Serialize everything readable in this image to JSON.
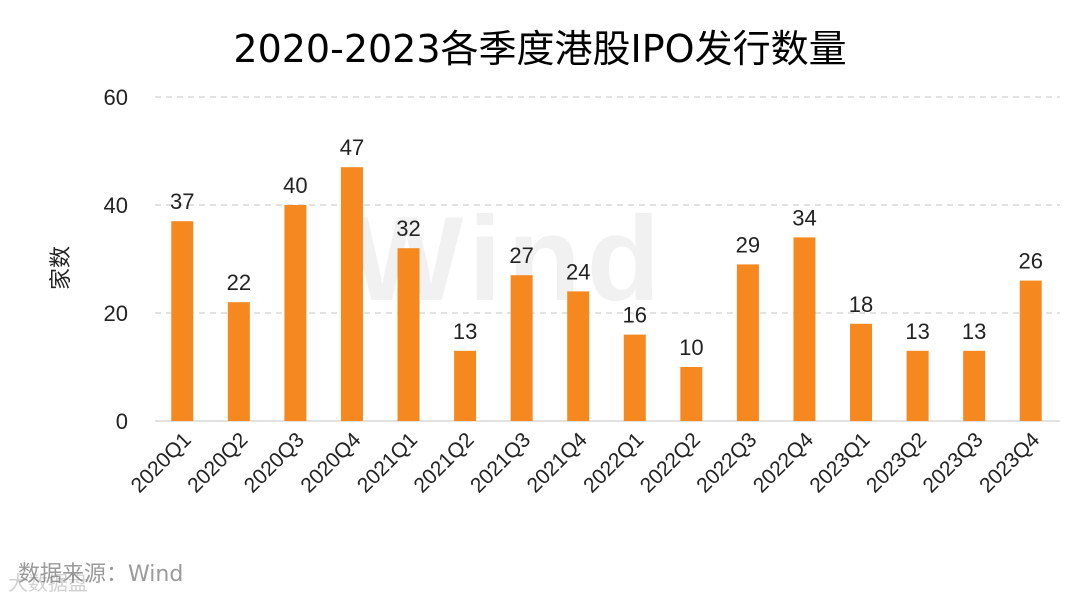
{
  "chart_data": {
    "type": "bar",
    "title": "2020-2023各季度港股IPO发行数量",
    "ylabel": "家数",
    "xlabel": "",
    "ylim": [
      0,
      60
    ],
    "yticks": [
      0,
      20,
      40,
      60
    ],
    "grid": true,
    "categories": [
      "2020Q1",
      "2020Q2",
      "2020Q3",
      "2020Q4",
      "2021Q1",
      "2021Q2",
      "2021Q3",
      "2021Q4",
      "2022Q1",
      "2022Q2",
      "2022Q3",
      "2022Q4",
      "2023Q1",
      "2023Q2",
      "2023Q3",
      "2023Q4"
    ],
    "values": [
      37,
      22,
      40,
      47,
      32,
      13,
      27,
      24,
      16,
      10,
      29,
      34,
      18,
      13,
      13,
      26
    ],
    "bar_color": "#F5881F",
    "grid_color": "#D9D9D9"
  },
  "source_text": "数据来源：Wind",
  "watermark_center": "Wind",
  "watermark_bottom": "大数据盘"
}
